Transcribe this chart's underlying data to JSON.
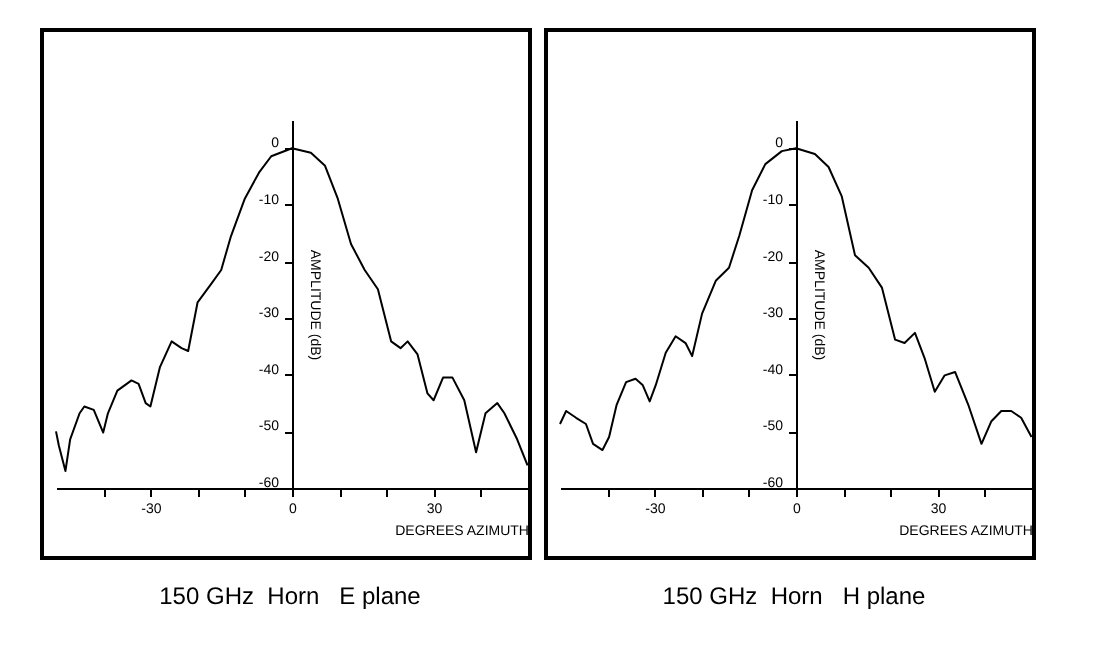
{
  "chart_data": [
    {
      "type": "line",
      "title": "150 GHz  Horn   E plane",
      "xlabel": "DEGREES AZIMUTH",
      "ylabel": "AMPLITUDE (dB)",
      "xlim": [
        -50,
        50
      ],
      "ylim": [
        -60,
        5
      ],
      "xticks": [
        {
          "value": -40,
          "label": null
        },
        -30,
        {
          "value": -20,
          "label": null
        },
        {
          "value": -10,
          "label": null
        },
        0,
        {
          "value": 10,
          "label": null
        },
        {
          "value": 20,
          "label": null
        },
        30,
        {
          "value": 40,
          "label": null
        }
      ],
      "yticks": [
        0,
        -10,
        -20,
        -30,
        -40,
        -50,
        -60
      ],
      "grid": false,
      "line_style": "solid",
      "series": [
        {
          "color": "#000000",
          "x": [
            -50,
            -49.4,
            -48,
            -47,
            -45,
            -44,
            -42,
            -40,
            -39,
            -37,
            -34,
            -32.5,
            -31,
            -30,
            -28,
            -25.5,
            -23.4,
            -22,
            -20,
            -17,
            -15,
            -13,
            -10,
            -7,
            -4.4,
            0,
            4,
            7,
            9.7,
            12.5,
            15.4,
            18.2,
            21,
            23,
            24.5,
            26.6,
            28.7,
            30,
            32,
            34,
            36.5,
            39,
            41,
            43.5,
            45,
            47.7,
            49.9
          ],
          "values": [
            -50,
            -52.5,
            -57,
            -51.4,
            -46.8,
            -45.6,
            -46.2,
            -50.2,
            -46.8,
            -42.8,
            -41,
            -41.6,
            -45,
            -45.6,
            -38.7,
            -34.1,
            -35.3,
            -35.8,
            -27.2,
            -23.8,
            -21.5,
            -15.7,
            -8.9,
            -4.3,
            -1.4,
            0,
            -0.8,
            -3.1,
            -8.9,
            -16.9,
            -21.5,
            -24.9,
            -34.1,
            -35.3,
            -34.1,
            -36.4,
            -43.3,
            -44.5,
            -40.5,
            -40.5,
            -44.5,
            -53.7,
            -46.8,
            -45,
            -46.8,
            -51.4,
            -56
          ]
        }
      ]
    },
    {
      "type": "line",
      "title": "150 GHz  Horn   H plane",
      "xlabel": "DEGREES AZIMUTH",
      "ylabel": "AMPLITUDE (dB)",
      "xlim": [
        -50,
        50
      ],
      "ylim": [
        -60,
        5
      ],
      "xticks": [
        {
          "value": -40,
          "label": null
        },
        -30,
        {
          "value": -20,
          "label": null
        },
        {
          "value": -10,
          "label": null
        },
        0,
        {
          "value": 10,
          "label": null
        },
        {
          "value": 20,
          "label": null
        },
        30,
        {
          "value": 40,
          "label": null
        }
      ],
      "yticks": [
        0,
        -10,
        -20,
        -30,
        -40,
        -50,
        -60
      ],
      "grid": false,
      "line_style": "solid",
      "series": [
        {
          "color": "#000000",
          "x": [
            -50,
            -48.7,
            -46.6,
            -44.5,
            -43,
            -41,
            -39.6,
            -38,
            -36,
            -34,
            -32.5,
            -31,
            -29.7,
            -27.6,
            -25.5,
            -23.4,
            -22,
            -19.9,
            -17,
            -14.2,
            -12,
            -9.3,
            -6.5,
            -3,
            0,
            4,
            6.9,
            9.7,
            12.5,
            15.4,
            18.2,
            21,
            23,
            25.2,
            27.3,
            29.4,
            31.5,
            33.7,
            36.5,
            39.3,
            41.4,
            43.5,
            45.6,
            47.7,
            49.9
          ],
          "values": [
            -48.7,
            -46.4,
            -47.6,
            -48.7,
            -52.2,
            -53.3,
            -51,
            -45.3,
            -41.3,
            -40.7,
            -41.8,
            -44.7,
            -41.8,
            -36.1,
            -33.2,
            -34.4,
            -36.7,
            -29.2,
            -23.4,
            -21.1,
            -15.4,
            -7.4,
            -2.8,
            -0.5,
            0,
            -1,
            -3.3,
            -8.5,
            -18.9,
            -21.1,
            -24.6,
            -33.8,
            -34.4,
            -32.6,
            -37.2,
            -43,
            -40.1,
            -39.5,
            -45.3,
            -52.2,
            -48.2,
            -46.4,
            -46.4,
            -47.6,
            -51
          ]
        }
      ]
    }
  ]
}
